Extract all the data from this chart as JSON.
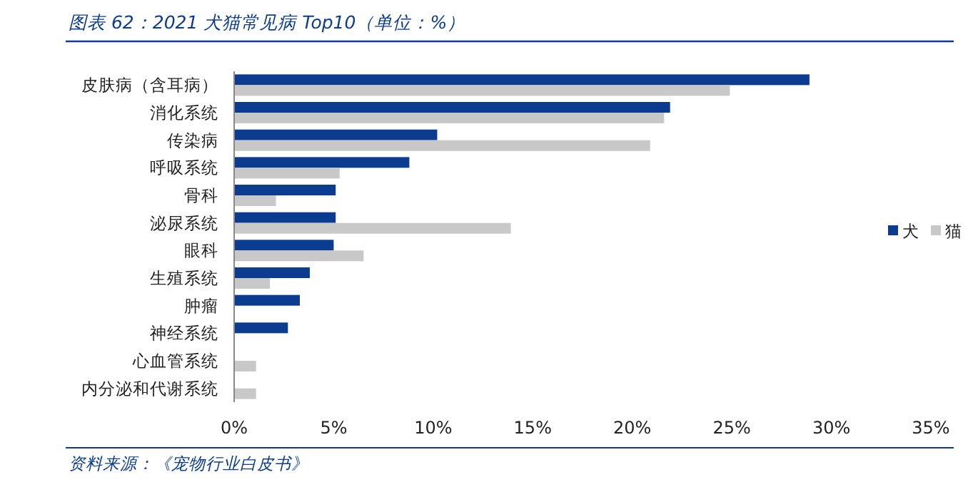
{
  "chart_data": {
    "type": "bar",
    "orientation": "horizontal",
    "title": "图表 62：2021 犬猫常见病 Top10（单位：%）",
    "categories": [
      "皮肤病（含耳病）",
      "消化系统",
      "传染病",
      "呼吸系统",
      "骨科",
      "泌尿系统",
      "眼科",
      "生殖系统",
      "肿瘤",
      "神经系统",
      "心血管系统",
      "内分泌和代谢系统"
    ],
    "series": [
      {
        "name": "犬",
        "color": "#0c3c8f",
        "values": [
          28.9,
          21.9,
          10.2,
          8.8,
          5.1,
          5.1,
          5.0,
          3.8,
          3.3,
          2.7,
          null,
          null
        ]
      },
      {
        "name": "猫",
        "color": "#c8c8c8",
        "values": [
          24.9,
          21.6,
          20.9,
          5.3,
          2.1,
          13.9,
          6.5,
          1.8,
          null,
          null,
          1.1,
          1.1
        ]
      }
    ],
    "xlim": [
      0,
      35
    ],
    "xticks": [
      {
        "value": 0,
        "label": "0%"
      },
      {
        "value": 5,
        "label": "5%"
      },
      {
        "value": 10,
        "label": "10%"
      },
      {
        "value": 15,
        "label": "15%"
      },
      {
        "value": 20,
        "label": "20%"
      },
      {
        "value": 25,
        "label": "25%"
      },
      {
        "value": 30,
        "label": "30%"
      },
      {
        "value": 35,
        "label": "35%"
      }
    ],
    "legend": "right",
    "grid": false,
    "annotations": [
      "资料来源：《宠物行业白皮书》"
    ]
  }
}
